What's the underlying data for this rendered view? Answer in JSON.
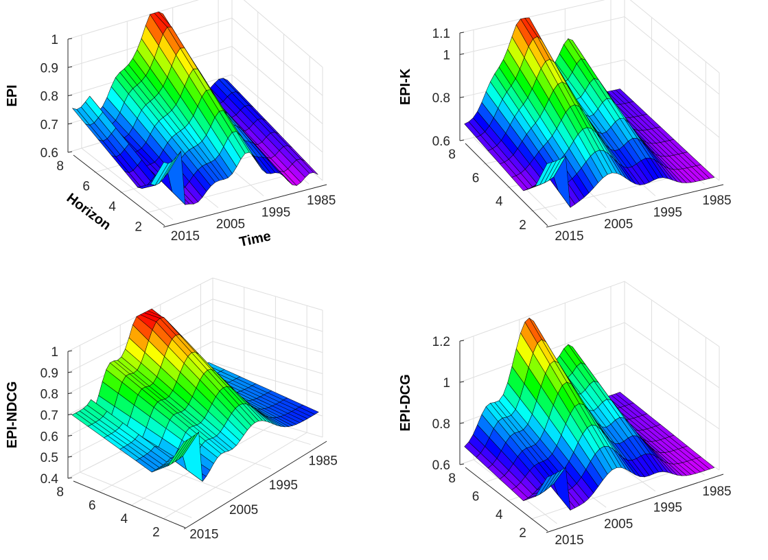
{
  "chart_data": [
    {
      "type": "surface",
      "title": "",
      "zlabel": "EPI",
      "xlabel": "Time",
      "ylabel": "Horizon",
      "x_ticks": [
        "1985",
        "1995",
        "2005",
        "2015"
      ],
      "x_range": [
        1982,
        2018
      ],
      "y_ticks": [
        "2",
        "4",
        "6",
        "8"
      ],
      "y_range": [
        1,
        8
      ],
      "z_ticks": [
        "0.6",
        "0.7",
        "0.8",
        "0.9",
        "1"
      ],
      "z_range": [
        0.6,
        1.0
      ],
      "colormap": "hsv",
      "grid": true
    },
    {
      "type": "surface",
      "title": "",
      "zlabel": "EPI-K",
      "xlabel": "",
      "ylabel": "",
      "x_ticks": [
        "1985",
        "1995",
        "2005",
        "2015"
      ],
      "x_range": [
        1982,
        2018
      ],
      "y_ticks": [
        "2",
        "4",
        "6",
        "8"
      ],
      "y_range": [
        1,
        8
      ],
      "z_ticks": [
        "0.6",
        "0.8",
        "1",
        "1.1"
      ],
      "z_range": [
        0.6,
        1.1
      ],
      "colormap": "hsv",
      "grid": true
    },
    {
      "type": "surface",
      "title": "",
      "zlabel": "EPI-NDCG",
      "xlabel": "",
      "ylabel": "",
      "x_ticks": [
        "1985",
        "1995",
        "2005",
        "2015"
      ],
      "x_range": [
        1982,
        2018
      ],
      "y_ticks": [
        "2",
        "4",
        "6",
        "8"
      ],
      "y_range": [
        1,
        8
      ],
      "z_ticks": [
        "0.4",
        "0.5",
        "0.6",
        "0.7",
        "0.8",
        "0.9",
        "1"
      ],
      "z_range": [
        0.4,
        1.0
      ],
      "colormap": "hsv",
      "grid": true
    },
    {
      "type": "surface",
      "title": "",
      "zlabel": "EPI-DCG",
      "xlabel": "",
      "ylabel": "",
      "x_ticks": [
        "1985",
        "1995",
        "2005",
        "2015"
      ],
      "x_range": [
        1982,
        2018
      ],
      "y_ticks": [
        "2",
        "4",
        "6",
        "8"
      ],
      "y_range": [
        1,
        8
      ],
      "z_ticks": [
        "0.6",
        "0.8",
        "1",
        "1.2"
      ],
      "z_range": [
        0.6,
        1.2
      ],
      "colormap": "hsv",
      "grid": true
    }
  ]
}
